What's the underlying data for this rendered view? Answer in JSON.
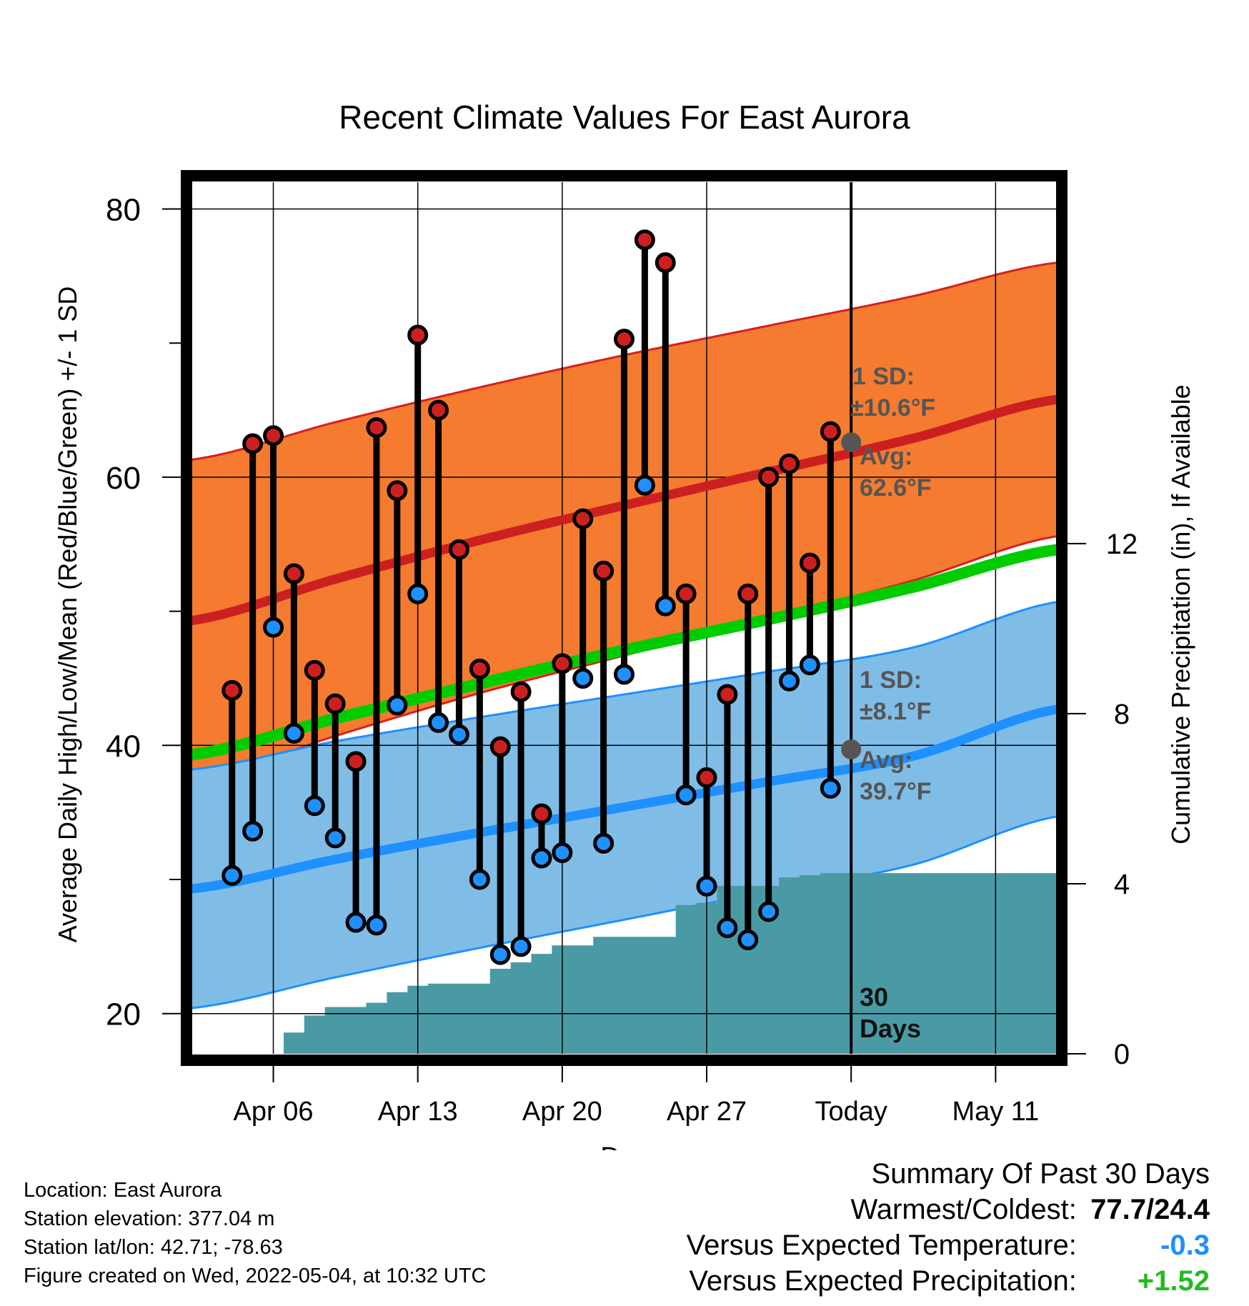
{
  "chart_data": {
    "type": "line",
    "title": "Recent Climate Values For East Aurora",
    "xlabel": "Day",
    "ylabel": "Average Daily High/Low/Mean (Red/Blue/Green) +/- 1 SD",
    "y2label": "Cumulative Precipitation (in), If Available",
    "x_range": [
      "2022-04-02",
      "2022-05-14"
    ],
    "ylim": [
      17,
      82
    ],
    "y2lim": [
      0,
      20.5
    ],
    "y_ticks": [
      20,
      40,
      60,
      80
    ],
    "y2_ticks": [
      0,
      4,
      8,
      12
    ],
    "x_ticks": [
      {
        "date": "2022-04-06",
        "label": "Apr 06"
      },
      {
        "date": "2022-04-13",
        "label": "Apr 13"
      },
      {
        "date": "2022-04-20",
        "label": "Apr 20"
      },
      {
        "date": "2022-04-27",
        "label": "Apr 27"
      },
      {
        "date": "2022-05-04",
        "label": "Today"
      },
      {
        "date": "2022-05-11",
        "label": "May 11"
      }
    ],
    "grid": true,
    "today": "2022-05-04",
    "colors": {
      "high": "#cc2020",
      "high_band": "#f47b2f",
      "high_band_edge": "#d62020",
      "low": "#1e90ff",
      "low_band": "#80bde6",
      "low_band_edge": "#1e90ff",
      "mean": "#00cc00",
      "precip": "#4a9aa5",
      "avg_marker": "#555555",
      "annotation": "#555555",
      "cold_value": "#1e90ff",
      "wet_value": "#22bb22"
    },
    "normal_curves": {
      "dates": [
        "2022-04-02",
        "2022-04-09",
        "2022-04-16",
        "2022-04-23",
        "2022-04-30",
        "2022-05-07",
        "2022-05-14"
      ],
      "high_mean": [
        49.3,
        52.4,
        55.3,
        57.9,
        60.4,
        62.9,
        65.8
      ],
      "high_sd": [
        12.0,
        11.7,
        11.4,
        11.2,
        10.9,
        10.6,
        10.2
      ],
      "low_mean": [
        29.3,
        31.5,
        33.5,
        35.4,
        37.3,
        39.2,
        42.7
      ],
      "low_sd": [
        8.9,
        8.8,
        8.6,
        8.4,
        8.2,
        8.1,
        8.0
      ],
      "mean_mean": [
        39.3,
        42.0,
        44.6,
        47.1,
        49.4,
        51.8,
        54.6
      ]
    },
    "series": [
      {
        "name": "High",
        "dates": [
          "2022-04-04",
          "2022-04-05",
          "2022-04-06",
          "2022-04-07",
          "2022-04-08",
          "2022-04-09",
          "2022-04-10",
          "2022-04-11",
          "2022-04-12",
          "2022-04-13",
          "2022-04-14",
          "2022-04-15",
          "2022-04-16",
          "2022-04-17",
          "2022-04-18",
          "2022-04-19",
          "2022-04-20",
          "2022-04-21",
          "2022-04-22",
          "2022-04-23",
          "2022-04-24",
          "2022-04-25",
          "2022-04-26",
          "2022-04-27",
          "2022-04-28",
          "2022-04-29",
          "2022-04-30",
          "2022-05-01",
          "2022-05-02",
          "2022-05-03"
        ],
        "values": [
          44.1,
          62.5,
          63.1,
          52.8,
          45.6,
          43.1,
          38.8,
          63.7,
          59.0,
          70.6,
          65.0,
          54.6,
          45.7,
          39.9,
          44.0,
          34.9,
          46.1,
          56.9,
          53.0,
          70.3,
          77.7,
          76.0,
          51.3,
          37.6,
          43.8,
          51.3,
          60.0,
          61.0,
          53.6,
          63.4
        ]
      },
      {
        "name": "Low",
        "dates": [
          "2022-04-04",
          "2022-04-05",
          "2022-04-06",
          "2022-04-07",
          "2022-04-08",
          "2022-04-09",
          "2022-04-10",
          "2022-04-11",
          "2022-04-12",
          "2022-04-13",
          "2022-04-14",
          "2022-04-15",
          "2022-04-16",
          "2022-04-17",
          "2022-04-18",
          "2022-04-19",
          "2022-04-20",
          "2022-04-21",
          "2022-04-22",
          "2022-04-23",
          "2022-04-24",
          "2022-04-25",
          "2022-04-26",
          "2022-04-27",
          "2022-04-28",
          "2022-04-29",
          "2022-04-30",
          "2022-05-01",
          "2022-05-02",
          "2022-05-03"
        ],
        "values": [
          30.3,
          33.6,
          48.8,
          40.9,
          35.5,
          33.1,
          26.8,
          26.6,
          43.0,
          51.3,
          41.7,
          40.8,
          30.0,
          24.4,
          25.0,
          31.6,
          32.0,
          45.0,
          32.7,
          45.3,
          59.4,
          50.4,
          36.3,
          29.5,
          26.4,
          25.5,
          27.6,
          44.8,
          46.0,
          36.8
        ]
      },
      {
        "name": "Cumulative Precipitation",
        "dates": [
          "2022-04-04",
          "2022-04-05",
          "2022-04-06",
          "2022-04-07",
          "2022-04-08",
          "2022-04-09",
          "2022-04-10",
          "2022-04-11",
          "2022-04-12",
          "2022-04-13",
          "2022-04-14",
          "2022-04-15",
          "2022-04-16",
          "2022-04-17",
          "2022-04-18",
          "2022-04-19",
          "2022-04-20",
          "2022-04-21",
          "2022-04-22",
          "2022-04-23",
          "2022-04-24",
          "2022-04-25",
          "2022-04-26",
          "2022-04-27",
          "2022-04-28",
          "2022-04-29",
          "2022-04-30",
          "2022-05-01",
          "2022-05-02",
          "2022-05-03",
          "2022-05-14"
        ],
        "values": [
          0.0,
          0.0,
          0.0,
          0.5,
          0.9,
          1.1,
          1.1,
          1.2,
          1.45,
          1.6,
          1.65,
          1.65,
          1.65,
          2.0,
          2.15,
          2.35,
          2.55,
          2.55,
          2.75,
          2.75,
          2.75,
          2.75,
          3.5,
          3.55,
          3.95,
          3.95,
          3.95,
          4.15,
          4.2,
          4.25,
          4.25
        ]
      }
    ],
    "annotations": {
      "high_sd": "1 SD:",
      "high_sd_value": "±10.6°F",
      "high_avg": "Avg:",
      "high_avg_value": "62.6°F",
      "low_sd": "1 SD:",
      "low_sd_value": "±8.1°F",
      "low_avg": "Avg:",
      "low_avg_value": "39.7°F",
      "period_count": "30",
      "period_unit": "Days",
      "today_high_avg": 62.6,
      "today_low_avg": 39.7
    }
  },
  "info": {
    "location": "Location: East Aurora",
    "elevation": "Station elevation: 377.04 m",
    "latlon": "Station lat/lon: 42.71; -78.63",
    "created": "Figure created on Wed, 2022-05-04, at 10:32 UTC"
  },
  "summary": {
    "title": "Summary Of Past 30 Days",
    "warmest_label": "Warmest/Coldest:",
    "warmest_value": "77.7/24.4",
    "temp_label": "Versus Expected Temperature:",
    "temp_value": "-0.3",
    "precip_label": "Versus Expected Precipitation:",
    "precip_value": "+1.52"
  }
}
